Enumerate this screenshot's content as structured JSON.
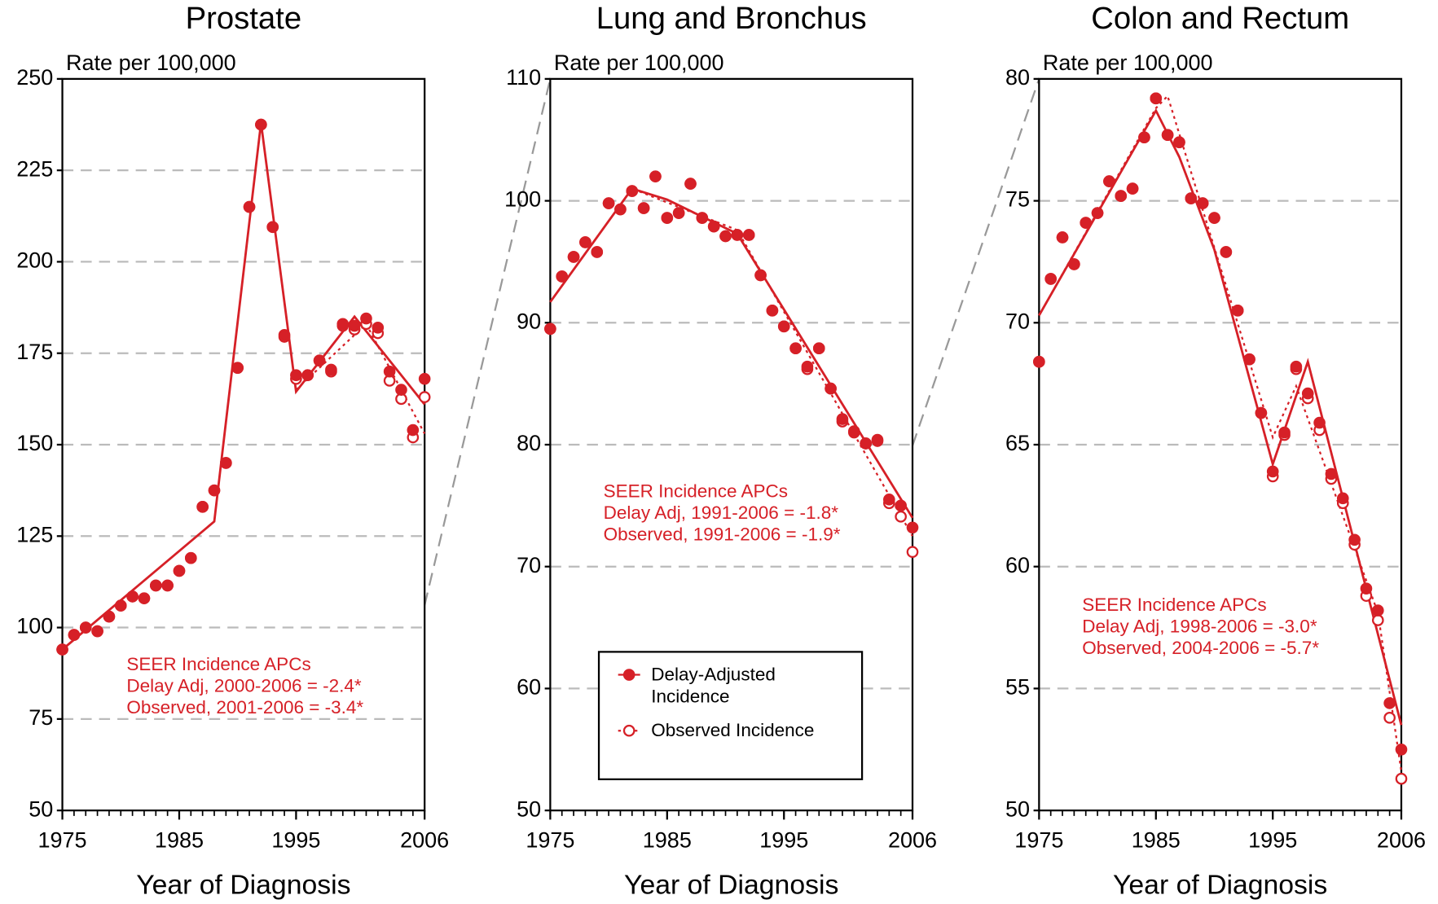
{
  "chart_data": [
    {
      "type": "line",
      "title": "Prostate",
      "ylabel": "Rate per 100,000",
      "xlabel": "Year of Diagnosis",
      "xlim": [
        1975,
        2006
      ],
      "xticks": [
        1975,
        1985,
        1995,
        2006
      ],
      "ylim": [
        50,
        250
      ],
      "yticks": [
        50,
        75,
        100,
        125,
        150,
        175,
        200,
        225,
        250
      ],
      "grid": true,
      "legend": false,
      "x": [
        1975,
        1976,
        1977,
        1978,
        1979,
        1980,
        1981,
        1982,
        1983,
        1984,
        1985,
        1986,
        1987,
        1988,
        1989,
        1990,
        1991,
        1992,
        1993,
        1994,
        1995,
        1996,
        1997,
        1998,
        1999,
        2000,
        2001,
        2002,
        2003,
        2004,
        2005,
        2006
      ],
      "series": [
        {
          "name": "Delay-Adjusted Incidence",
          "color": "#d62027",
          "marker": "filled",
          "values": [
            94,
            98,
            100,
            99,
            103,
            106,
            108.5,
            108,
            111.5,
            111.5,
            115.5,
            119,
            133,
            137.5,
            145,
            171,
            215,
            237.5,
            209.5,
            180,
            169,
            169,
            173,
            170.5,
            183,
            182.5,
            184.5,
            182,
            170,
            165,
            154,
            168
          ]
        },
        {
          "name": "Observed Incidence",
          "color": "#d62027",
          "marker": "open",
          "values": [
            94,
            98,
            100,
            99,
            103,
            106,
            108.5,
            108,
            111.5,
            111.5,
            115.5,
            119,
            133,
            137.5,
            145,
            171,
            215,
            237.5,
            209.5,
            179.5,
            168,
            169,
            173,
            170,
            182.5,
            181.5,
            183,
            180.5,
            167.5,
            162.5,
            152,
            163
          ]
        }
      ],
      "trend_lines": [
        {
          "style": "solid",
          "color": "#d62027",
          "x": [
            1975,
            1988,
            1992,
            1995,
            2000,
            2006
          ],
          "values": [
            94,
            129,
            238,
            164.5,
            185,
            161
          ]
        },
        {
          "style": "dotted",
          "color": "#d62027",
          "x": [
            1995,
            2001,
            2006
          ],
          "values": [
            165,
            183,
            153
          ]
        }
      ],
      "annotations": [
        "SEER Incidence APCs",
        "Delay Adj, 2000-2006 = -2.4*",
        "Observed, 2001-2006 = -3.4*"
      ]
    },
    {
      "type": "line",
      "title": "Lung and Bronchus",
      "ylabel": "Rate per 100,000",
      "xlabel": "Year of Diagnosis",
      "xlim": [
        1975,
        2006
      ],
      "xticks": [
        1975,
        1985,
        1995,
        2006
      ],
      "ylim": [
        50,
        110
      ],
      "yticks": [
        50,
        60,
        70,
        80,
        90,
        100,
        110
      ],
      "grid": true,
      "legend": true,
      "x": [
        1975,
        1976,
        1977,
        1978,
        1979,
        1980,
        1981,
        1982,
        1983,
        1984,
        1985,
        1986,
        1987,
        1988,
        1989,
        1990,
        1991,
        1992,
        1993,
        1994,
        1995,
        1996,
        1997,
        1998,
        1999,
        2000,
        2001,
        2002,
        2003,
        2004,
        2005,
        2006
      ],
      "series": [
        {
          "name": "Delay-Adjusted Incidence",
          "color": "#d62027",
          "marker": "filled",
          "values": [
            89.5,
            93.8,
            95.4,
            96.6,
            95.8,
            99.8,
            99.3,
            100.8,
            99.4,
            102,
            98.6,
            99,
            101.4,
            98.6,
            97.9,
            97.1,
            97.2,
            97.2,
            93.9,
            91,
            89.7,
            87.9,
            86.4,
            87.9,
            84.6,
            82.1,
            81.1,
            80.1,
            80.4,
            75.5,
            75,
            73.2
          ]
        },
        {
          "name": "Observed Incidence",
          "color": "#d62027",
          "marker": "open",
          "values": [
            89.5,
            93.8,
            95.4,
            96.6,
            95.8,
            99.8,
            99.3,
            100.8,
            99.4,
            102,
            98.6,
            99,
            101.4,
            98.6,
            97.9,
            97.1,
            97.2,
            97.2,
            93.9,
            91,
            89.7,
            87.9,
            86.2,
            87.9,
            84.6,
            81.9,
            81,
            80.1,
            80.3,
            75.2,
            74.1,
            71.2
          ]
        }
      ],
      "trend_lines": [
        {
          "style": "solid",
          "color": "#d62027",
          "x": [
            1975,
            1982,
            1985,
            1991,
            2006
          ],
          "values": [
            91.7,
            101,
            100.1,
            97.3,
            74
          ]
        },
        {
          "style": "dotted",
          "color": "#d62027",
          "x": [
            1975,
            1982,
            1991,
            2006
          ],
          "values": [
            91.7,
            101,
            97.6,
            72.5
          ]
        }
      ],
      "annotations": [
        "SEER Incidence APCs",
        "Delay Adj, 1991-2006 = -1.8*",
        "Observed, 1991-2006 = -1.9*"
      ]
    },
    {
      "type": "line",
      "title": "Colon and Rectum",
      "ylabel": "Rate per 100,000",
      "xlabel": "Year of Diagnosis",
      "xlim": [
        1975,
        2006
      ],
      "xticks": [
        1975,
        1985,
        1995,
        2006
      ],
      "ylim": [
        50,
        80
      ],
      "yticks": [
        50,
        55,
        60,
        65,
        70,
        75,
        80
      ],
      "grid": true,
      "legend": false,
      "x": [
        1975,
        1976,
        1977,
        1978,
        1979,
        1980,
        1981,
        1982,
        1983,
        1984,
        1985,
        1986,
        1987,
        1988,
        1989,
        1990,
        1991,
        1992,
        1993,
        1994,
        1995,
        1996,
        1997,
        1998,
        1999,
        2000,
        2001,
        2002,
        2003,
        2004,
        2005,
        2006
      ],
      "series": [
        {
          "name": "Delay-Adjusted Incidence",
          "color": "#d62027",
          "marker": "filled",
          "values": [
            68.4,
            71.8,
            73.5,
            72.4,
            74.1,
            74.5,
            75.8,
            75.2,
            75.5,
            77.6,
            79.2,
            77.7,
            77.4,
            75.1,
            74.9,
            74.3,
            72.9,
            70.5,
            68.5,
            66.3,
            63.9,
            65.5,
            68.2,
            67.1,
            65.9,
            63.8,
            62.8,
            61.1,
            59.1,
            58.2,
            54.4,
            52.5
          ]
        },
        {
          "name": "Observed Incidence",
          "color": "#d62027",
          "marker": "open",
          "values": [
            68.4,
            71.8,
            73.5,
            72.4,
            74.1,
            74.5,
            75.8,
            75.2,
            75.5,
            77.6,
            79.2,
            77.7,
            77.4,
            75.1,
            74.9,
            74.3,
            72.9,
            70.5,
            68.5,
            66.3,
            63.7,
            65.4,
            68.1,
            66.9,
            65.6,
            63.6,
            62.6,
            60.9,
            58.8,
            57.8,
            53.8,
            51.3
          ]
        }
      ],
      "trend_lines": [
        {
          "style": "solid",
          "color": "#d62027",
          "x": [
            1975,
            1985,
            1987,
            1990,
            1995,
            1998,
            2006
          ],
          "values": [
            70.3,
            78.7,
            76.8,
            73,
            64.2,
            68.4,
            53.5
          ]
        },
        {
          "style": "dotted",
          "color": "#d62027",
          "x": [
            1975,
            1985,
            1986,
            1995,
            1997,
            2004,
            2006
          ],
          "values": [
            70.3,
            78.8,
            79.3,
            65.3,
            67.4,
            58.1,
            51.6
          ]
        }
      ],
      "annotations": [
        "SEER Incidence APCs",
        "Delay Adj, 1998-2006 = -3.0*",
        "Observed, 2004-2006 = -5.7*"
      ]
    }
  ]
}
